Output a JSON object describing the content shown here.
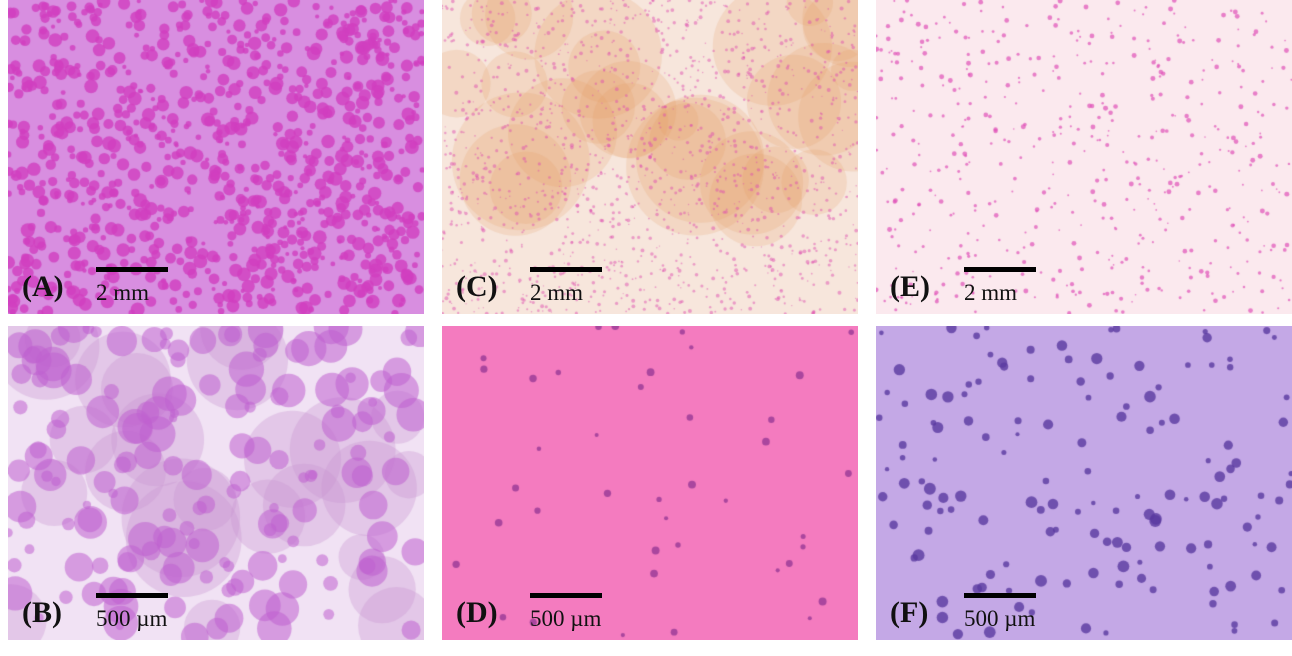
{
  "panels": [
    {
      "label": "(A)",
      "scale": "2 mm",
      "bg": "#d88ee0",
      "dot": "#d13fbf",
      "style": "dense-cells"
    },
    {
      "label": "(B)",
      "scale": "500 µm",
      "bg": "#f1e2f4",
      "dot": "#c060d0",
      "style": "large-cells"
    },
    {
      "label": "(C)",
      "scale": "2 mm",
      "bg": "#f7e6dc",
      "dot": "#e04fb0",
      "style": "speckled-orange"
    },
    {
      "label": "(D)",
      "scale": "500 µm",
      "bg": "#f47bbf",
      "dot": "#8a3090",
      "style": "sparse-pink"
    },
    {
      "label": "(E)",
      "scale": "2 mm",
      "bg": "#fbe9ee",
      "dot": "#e050b8",
      "style": "sparse-dots"
    },
    {
      "label": "(F)",
      "scale": "500 µm",
      "bg": "#c4a8e6",
      "dot": "#5a3aa0",
      "style": "clustered-purple"
    }
  ]
}
